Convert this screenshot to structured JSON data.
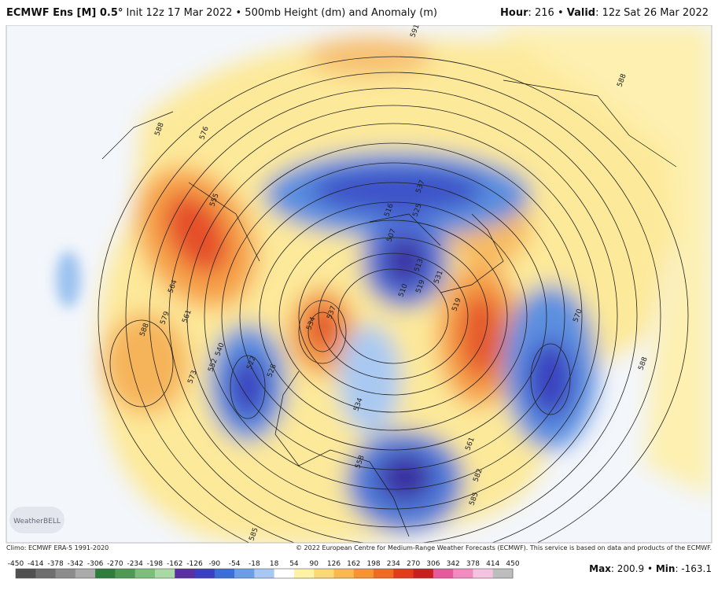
{
  "header": {
    "model": "ECMWF Ens [M] 0.5°",
    "description": "Init 12z 17 Mar 2022 • 500mb Height (dm) and Anomaly (m)",
    "hour_label": "Hour",
    "hour": ": 216 • ",
    "valid_label": "Valid",
    "valid": ": 12z Sat 26 Mar 2022"
  },
  "map": {
    "logo": "WeatherBELL",
    "contour_labels": [
      "591",
      "588",
      "588",
      "576",
      "555",
      "516",
      "525",
      "537",
      "507",
      "513",
      "510",
      "519",
      "531",
      "519",
      "537",
      "534",
      "564",
      "579",
      "588",
      "561",
      "540",
      "552",
      "522",
      "528",
      "573",
      "570",
      "588",
      "561",
      "582",
      "585",
      "585",
      "534",
      "558"
    ]
  },
  "footer": {
    "climo": "Climo: ECMWF ERA-5 1991-2020",
    "copyright": "© 2022 European Centre for Medium-Range Weather Forecasts (ECMWF). This service is based on data and products of the ECMWF.",
    "colorbar_ticks": [
      -450,
      -414,
      -378,
      -342,
      -306,
      -270,
      -234,
      -198,
      -162,
      -126,
      -90,
      -54,
      -18,
      18,
      54,
      90,
      126,
      162,
      198,
      234,
      270,
      306,
      342,
      378,
      414,
      450
    ],
    "colorbar_colors": [
      "#505050",
      "#6e6e6e",
      "#8c8c8c",
      "#aaaaaa",
      "#2f7d3c",
      "#4e9a55",
      "#7bbf7a",
      "#a9d9a4",
      "#5a2fa0",
      "#3b3fc4",
      "#3a6fd8",
      "#6a9fe6",
      "#a6c8f2",
      "#ffffff",
      "#fff2a6",
      "#fcd878",
      "#f9b950",
      "#f59433",
      "#ef6a22",
      "#e23b1c",
      "#c8201d",
      "#e65a9b",
      "#f08cc0",
      "#f5c2df",
      "#bdbdbd"
    ],
    "max_label": "Max",
    "max": ": 200.9",
    "separator": " • ",
    "min_label": "Min",
    "min": ": -163.1"
  }
}
